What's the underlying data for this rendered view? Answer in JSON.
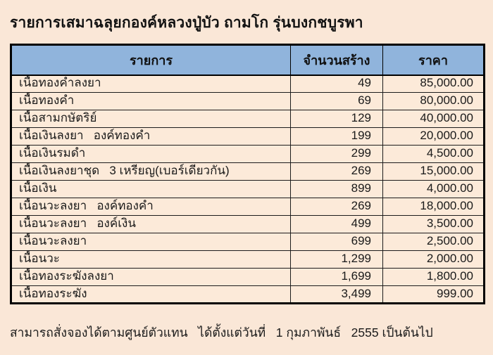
{
  "page": {
    "title": "รายการเสมาฉลุยกองค์หลวงปู่บัว ถามโก รุ่นบงกชบูรพา",
    "footer": "สามารถสั่งจองได้ตามศูนย์ตัวแทน   ได้ตั้งแต่วันที่   1 กุมภาพันธ์   2555 เป็นต้นไป",
    "colors": {
      "background": "#fae7d7",
      "header_bg": "#90b4dc",
      "row_bg": "#fcead9",
      "border": "#000000",
      "text": "#1a1a1a"
    }
  },
  "table": {
    "columns": [
      "รายการ",
      "จำนวนสร้าง",
      "ราคา"
    ],
    "rows": [
      {
        "item": "เนื้อทองคำลงยา",
        "qty": "49",
        "price": "85,000.00"
      },
      {
        "item": "เนื้อทองคำ",
        "qty": "69",
        "price": "80,000.00"
      },
      {
        "item": "เนื้อสามกษัตริย์",
        "qty": "129",
        "price": "40,000.00"
      },
      {
        "item": "เนื้อเงินลงยา   องค์ทองคำ",
        "qty": "199",
        "price": "20,000.00"
      },
      {
        "item": "เนื้อเงินรมดำ",
        "qty": "299",
        "price": "4,500.00"
      },
      {
        "item": "เนื้อเงินลงยาชุด   3 เหรียญ(เบอร์เดียวกัน)",
        "qty": "269",
        "price": "15,000.00"
      },
      {
        "item": "เนื้อเงิน",
        "qty": "899",
        "price": "4,000.00"
      },
      {
        "item": "เนื้อนวะลงยา   องค์ทองคำ",
        "qty": "269",
        "price": "18,000.00"
      },
      {
        "item": "เนื้อนวะลงยา   องค์เงิน",
        "qty": "499",
        "price": "3,500.00"
      },
      {
        "item": "เนื้อนวะลงยา",
        "qty": "699",
        "price": "2,500.00"
      },
      {
        "item": "เนื้อนวะ",
        "qty": "1,299",
        "price": "2,000.00"
      },
      {
        "item": "เนื้อทองระฆังลงยา",
        "qty": "1,699",
        "price": "1,800.00"
      },
      {
        "item": "เนื้อทองระฆัง",
        "qty": "3,499",
        "price": "999.00"
      }
    ]
  }
}
